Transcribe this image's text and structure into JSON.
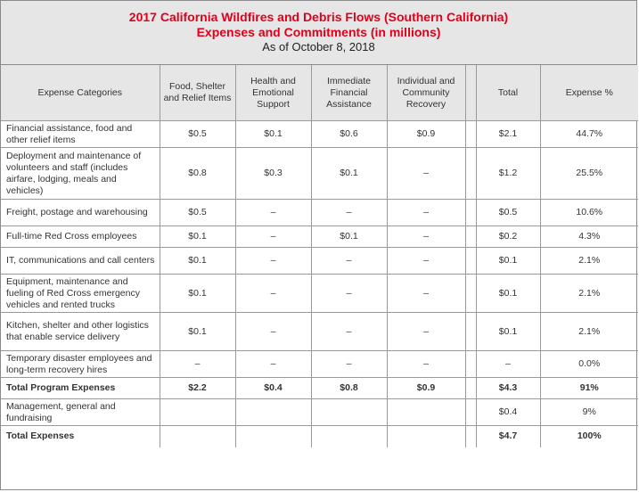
{
  "title": {
    "line1": "2017 California Wildfires and Debris Flows (Southern California)",
    "line2": "Expenses and Commitments (in millions)",
    "line3": "As of October 8, 2018"
  },
  "columns": [
    "Expense Categories",
    "Food, Shelter and Relief Items",
    "Health and Emotional Support",
    "Immediate Financial Assistance",
    "Individual and Community Recovery",
    "",
    "Total",
    "Expense %"
  ],
  "rows": [
    {
      "cat": "Financial assistance, food and other relief items",
      "food": "$0.5",
      "health": "$0.1",
      "ifa": "$0.6",
      "icr": "$0.9",
      "total": "$2.1",
      "pct": "44.7%"
    },
    {
      "cat": "Deployment and maintenance of volunteers and staff (includes airfare, lodging, meals and vehicles)",
      "food": "$0.8",
      "health": "$0.3",
      "ifa": "$0.1",
      "icr": "–",
      "total": "$1.2",
      "pct": "25.5%"
    },
    {
      "cat": "Freight, postage and warehousing",
      "food": "$0.5",
      "health": "–",
      "ifa": "–",
      "icr": "–",
      "total": "$0.5",
      "pct": "10.6%"
    },
    {
      "cat": "Full-time Red Cross employees",
      "food": "$0.1",
      "health": "–",
      "ifa": "$0.1",
      "icr": "–",
      "total": "$0.2",
      "pct": "4.3%"
    },
    {
      "cat": "IT, communications and call centers",
      "food": "$0.1",
      "health": "–",
      "ifa": "–",
      "icr": "–",
      "total": "$0.1",
      "pct": "2.1%"
    },
    {
      "cat": "Equipment, maintenance and fueling of Red Cross emergency vehicles and rented trucks",
      "food": "$0.1",
      "health": "–",
      "ifa": "–",
      "icr": "–",
      "total": "$0.1",
      "pct": "2.1%"
    },
    {
      "cat": "Kitchen, shelter and other logistics that enable service delivery",
      "food": "$0.1",
      "health": "–",
      "ifa": "–",
      "icr": "–",
      "total": "$0.1",
      "pct": "2.1%"
    },
    {
      "cat": "Temporary disaster employees and long-term recovery hires",
      "food": "–",
      "health": "–",
      "ifa": "–",
      "icr": "–",
      "total": "–",
      "pct": "0.0%"
    },
    {
      "cat": "Total Program Expenses",
      "food": "$2.2",
      "health": "$0.4",
      "ifa": "$0.8",
      "icr": "$0.9",
      "total": "$4.3",
      "pct": "91%"
    },
    {
      "cat": "Management, general and fundraising",
      "food": "",
      "health": "",
      "ifa": "",
      "icr": "",
      "total": "$0.4",
      "pct": "9%"
    },
    {
      "cat": "Total Expenses",
      "food": "",
      "health": "",
      "ifa": "",
      "icr": "",
      "total": "$4.7",
      "pct": "100%"
    }
  ]
}
